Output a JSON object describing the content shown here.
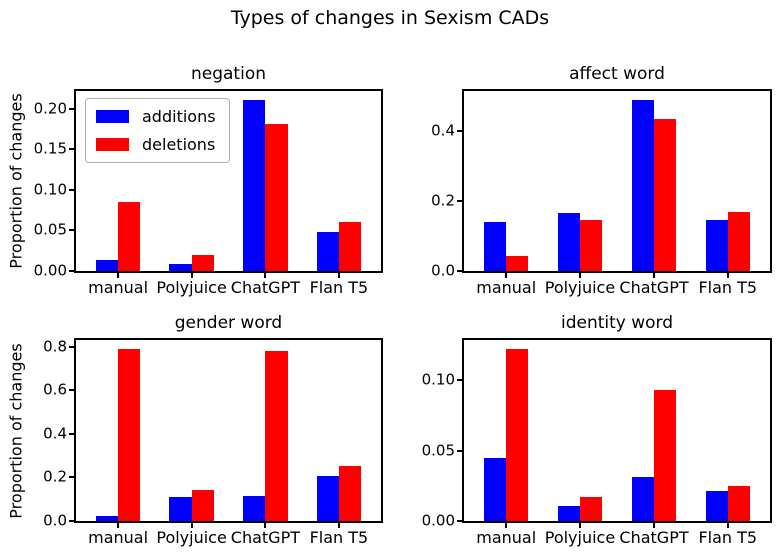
{
  "figure": {
    "title": "Types of changes in Sexism CADs",
    "background": "#ffffff"
  },
  "legend": {
    "position": "upper left",
    "items": [
      {
        "label": "additions",
        "color": "#0000ff"
      },
      {
        "label": "deletions",
        "color": "#ff0000"
      }
    ]
  },
  "chart_data": [
    {
      "type": "bar",
      "title": "negation",
      "xlabel": "",
      "ylabel": "Proportion of changes",
      "categories": [
        "manual",
        "Polyjuice",
        "ChatGPT",
        "Flan T5"
      ],
      "series": [
        {
          "name": "additions",
          "color": "#0000ff",
          "values": [
            0.014,
            0.009,
            0.211,
            0.048
          ]
        },
        {
          "name": "deletions",
          "color": "#ff0000",
          "values": [
            0.085,
            0.02,
            0.181,
            0.06
          ]
        }
      ],
      "ylim": [
        0,
        0.222
      ],
      "yticks": [
        0.0,
        0.05,
        0.1,
        0.15,
        0.2
      ],
      "ytick_labels": [
        "0.00",
        "0.05",
        "0.10",
        "0.15",
        "0.20"
      ],
      "grid": false,
      "legend_visible": true
    },
    {
      "type": "bar",
      "title": "affect word",
      "xlabel": "",
      "ylabel": "",
      "categories": [
        "manual",
        "Polyjuice",
        "ChatGPT",
        "Flan T5"
      ],
      "series": [
        {
          "name": "additions",
          "color": "#0000ff",
          "values": [
            0.139,
            0.165,
            0.49,
            0.145
          ]
        },
        {
          "name": "deletions",
          "color": "#ff0000",
          "values": [
            0.042,
            0.145,
            0.435,
            0.17
          ]
        }
      ],
      "ylim": [
        0,
        0.515
      ],
      "yticks": [
        0.0,
        0.2,
        0.4
      ],
      "ytick_labels": [
        "0.0",
        "0.2",
        "0.4"
      ],
      "grid": false,
      "legend_visible": false
    },
    {
      "type": "bar",
      "title": "gender word",
      "xlabel": "",
      "ylabel": "Proportion of changes",
      "categories": [
        "manual",
        "Polyjuice",
        "ChatGPT",
        "Flan T5"
      ],
      "series": [
        {
          "name": "additions",
          "color": "#0000ff",
          "values": [
            0.021,
            0.112,
            0.117,
            0.207
          ]
        },
        {
          "name": "deletions",
          "color": "#ff0000",
          "values": [
            0.79,
            0.143,
            0.779,
            0.251
          ]
        }
      ],
      "ylim": [
        0,
        0.83
      ],
      "yticks": [
        0.0,
        0.2,
        0.4,
        0.6,
        0.8
      ],
      "ytick_labels": [
        "0.0",
        "0.2",
        "0.4",
        "0.6",
        "0.8"
      ],
      "grid": false,
      "legend_visible": false
    },
    {
      "type": "bar",
      "title": "identity word",
      "xlabel": "",
      "ylabel": "",
      "categories": [
        "manual",
        "Polyjuice",
        "ChatGPT",
        "Flan T5"
      ],
      "series": [
        {
          "name": "additions",
          "color": "#0000ff",
          "values": [
            0.045,
            0.011,
            0.031,
            0.021
          ]
        },
        {
          "name": "deletions",
          "color": "#ff0000",
          "values": [
            0.122,
            0.017,
            0.093,
            0.025
          ]
        }
      ],
      "ylim": [
        0,
        0.1285
      ],
      "yticks": [
        0.0,
        0.05,
        0.1
      ],
      "ytick_labels": [
        "0.00",
        "0.05",
        "0.10"
      ],
      "grid": false,
      "legend_visible": false
    }
  ]
}
